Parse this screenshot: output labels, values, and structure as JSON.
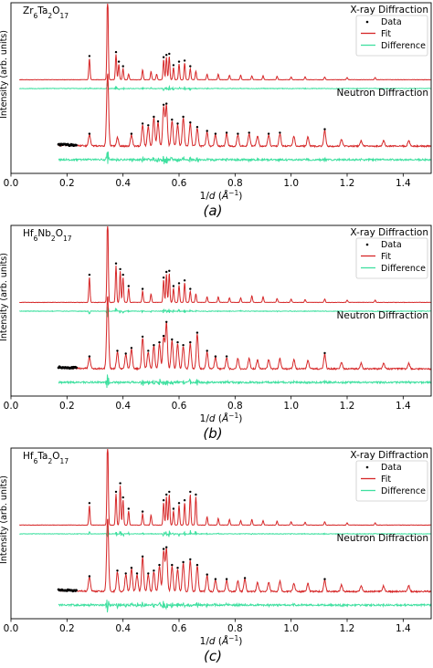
{
  "chart_data": [
    {
      "type": "line",
      "panel_label": "(a)",
      "compound": {
        "base": "Zr",
        "n1": "6",
        "metal2": "Ta",
        "n2": "2",
        "ox": "O",
        "n3": "17"
      },
      "xlabel_parts": {
        "pre": "1/",
        "d": "d",
        "open": " (",
        "A": "Å",
        "sup": "−1",
        "close": ")"
      },
      "ylabel": "Intensity (arb. units)",
      "xlim": [
        0.0,
        1.5
      ],
      "xticks": [
        "0.0",
        "0.2",
        "0.4",
        "0.6",
        "0.8",
        "1.0",
        "1.2",
        "1.4"
      ],
      "xtick_values": [
        0.0,
        0.2,
        0.4,
        0.6,
        0.8,
        1.0,
        1.2,
        1.4
      ],
      "legend": {
        "placement": "top-right",
        "entries": [
          "Data",
          "Fit",
          "Difference"
        ]
      },
      "series_colors": {
        "Data": "#000000",
        "Fit": "#d62728",
        "Difference": "#3fe0a0"
      },
      "xray": {
        "label": "X-ray Diffraction",
        "x_start": 0.03,
        "peaks": [
          [
            0.28,
            0.38
          ],
          [
            0.345,
            1.6
          ],
          [
            0.375,
            0.45
          ],
          [
            0.385,
            0.28
          ],
          [
            0.4,
            0.2
          ],
          [
            0.42,
            0.1
          ],
          [
            0.47,
            0.18
          ],
          [
            0.5,
            0.15
          ],
          [
            0.52,
            0.1
          ],
          [
            0.545,
            0.36
          ],
          [
            0.555,
            0.4
          ],
          [
            0.565,
            0.42
          ],
          [
            0.58,
            0.22
          ],
          [
            0.6,
            0.28
          ],
          [
            0.62,
            0.3
          ],
          [
            0.64,
            0.2
          ],
          [
            0.66,
            0.15
          ],
          [
            0.7,
            0.1
          ],
          [
            0.74,
            0.1
          ],
          [
            0.78,
            0.08
          ],
          [
            0.82,
            0.08
          ],
          [
            0.86,
            0.07
          ],
          [
            0.9,
            0.07
          ],
          [
            0.95,
            0.06
          ],
          [
            1.0,
            0.05
          ],
          [
            1.05,
            0.05
          ],
          [
            1.12,
            0.05
          ],
          [
            1.2,
            0.04
          ],
          [
            1.3,
            0.04
          ]
        ]
      },
      "neutron": {
        "label": "Neutron Diffraction",
        "x_start": 0.17,
        "peaks": [
          [
            0.28,
            0.2
          ],
          [
            0.345,
            1.3
          ],
          [
            0.38,
            0.15
          ],
          [
            0.43,
            0.2
          ],
          [
            0.47,
            0.38
          ],
          [
            0.49,
            0.35
          ],
          [
            0.51,
            0.5
          ],
          [
            0.525,
            0.42
          ],
          [
            0.545,
            0.7
          ],
          [
            0.555,
            0.72
          ],
          [
            0.575,
            0.45
          ],
          [
            0.595,
            0.38
          ],
          [
            0.615,
            0.5
          ],
          [
            0.64,
            0.4
          ],
          [
            0.665,
            0.32
          ],
          [
            0.7,
            0.25
          ],
          [
            0.73,
            0.2
          ],
          [
            0.77,
            0.22
          ],
          [
            0.81,
            0.2
          ],
          [
            0.85,
            0.22
          ],
          [
            0.88,
            0.18
          ],
          [
            0.92,
            0.2
          ],
          [
            0.96,
            0.22
          ],
          [
            1.01,
            0.18
          ],
          [
            1.06,
            0.16
          ],
          [
            1.12,
            0.28
          ],
          [
            1.18,
            0.12
          ],
          [
            1.25,
            0.1
          ],
          [
            1.33,
            0.1
          ],
          [
            1.42,
            0.1
          ]
        ]
      }
    },
    {
      "type": "line",
      "panel_label": "(b)",
      "compound": {
        "base": "Hf",
        "n1": "6",
        "metal2": "Nb",
        "n2": "2",
        "ox": "O",
        "n3": "17"
      },
      "xlabel_parts": {
        "pre": "1/",
        "d": "d",
        "open": " (",
        "A": "Å",
        "sup": "−1",
        "close": ")"
      },
      "ylabel": "Intensity (arb. units)",
      "xlim": [
        0.0,
        1.5
      ],
      "xticks": [
        "0.0",
        "0.2",
        "0.4",
        "0.6",
        "0.8",
        "1.0",
        "1.2",
        "1.4"
      ],
      "xtick_values": [
        0.0,
        0.2,
        0.4,
        0.6,
        0.8,
        1.0,
        1.2,
        1.4
      ],
      "legend": {
        "placement": "top-right",
        "entries": [
          "Data",
          "Fit",
          "Difference"
        ]
      },
      "series_colors": {
        "Data": "#000000",
        "Fit": "#d62728",
        "Difference": "#3fe0a0"
      },
      "xray": {
        "label": "X-ray Diffraction",
        "x_start": 0.03,
        "peaks": [
          [
            0.28,
            0.45
          ],
          [
            0.345,
            1.6
          ],
          [
            0.375,
            0.65
          ],
          [
            0.39,
            0.55
          ],
          [
            0.4,
            0.45
          ],
          [
            0.42,
            0.25
          ],
          [
            0.47,
            0.2
          ],
          [
            0.5,
            0.15
          ],
          [
            0.545,
            0.4
          ],
          [
            0.555,
            0.5
          ],
          [
            0.565,
            0.52
          ],
          [
            0.58,
            0.25
          ],
          [
            0.6,
            0.3
          ],
          [
            0.62,
            0.35
          ],
          [
            0.64,
            0.2
          ],
          [
            0.66,
            0.15
          ],
          [
            0.7,
            0.1
          ],
          [
            0.74,
            0.1
          ],
          [
            0.78,
            0.08
          ],
          [
            0.82,
            0.08
          ],
          [
            0.86,
            0.12
          ],
          [
            0.9,
            0.1
          ],
          [
            0.95,
            0.07
          ],
          [
            1.0,
            0.06
          ],
          [
            1.05,
            0.05
          ],
          [
            1.12,
            0.06
          ],
          [
            1.2,
            0.04
          ],
          [
            1.3,
            0.04
          ]
        ]
      },
      "neutron": {
        "label": "Neutron Diffraction",
        "x_start": 0.17,
        "peaks": [
          [
            0.28,
            0.2
          ],
          [
            0.345,
            1.3
          ],
          [
            0.38,
            0.3
          ],
          [
            0.41,
            0.25
          ],
          [
            0.43,
            0.35
          ],
          [
            0.47,
            0.55
          ],
          [
            0.49,
            0.3
          ],
          [
            0.51,
            0.4
          ],
          [
            0.53,
            0.45
          ],
          [
            0.545,
            0.55
          ],
          [
            0.555,
            0.8
          ],
          [
            0.575,
            0.5
          ],
          [
            0.595,
            0.45
          ],
          [
            0.615,
            0.4
          ],
          [
            0.64,
            0.45
          ],
          [
            0.665,
            0.62
          ],
          [
            0.7,
            0.3
          ],
          [
            0.73,
            0.2
          ],
          [
            0.77,
            0.2
          ],
          [
            0.81,
            0.18
          ],
          [
            0.85,
            0.18
          ],
          [
            0.88,
            0.16
          ],
          [
            0.92,
            0.16
          ],
          [
            0.96,
            0.18
          ],
          [
            1.01,
            0.16
          ],
          [
            1.06,
            0.14
          ],
          [
            1.12,
            0.26
          ],
          [
            1.18,
            0.12
          ],
          [
            1.25,
            0.1
          ],
          [
            1.33,
            0.1
          ],
          [
            1.42,
            0.1
          ]
        ]
      }
    },
    {
      "type": "line",
      "panel_label": "(c)",
      "compound": {
        "base": "Hf",
        "n1": "6",
        "metal2": "Ta",
        "n2": "2",
        "ox": "O",
        "n3": "17"
      },
      "xlabel_parts": {
        "pre": "1/",
        "d": "d",
        "open": " (",
        "A": "Å",
        "sup": "−1",
        "close": ")"
      },
      "ylabel": "Intensity (arb. units)",
      "xlim": [
        0.0,
        1.5
      ],
      "xticks": [
        "0.0",
        "0.2",
        "0.4",
        "0.6",
        "0.8",
        "1.0",
        "1.2",
        "1.4"
      ],
      "xtick_values": [
        0.0,
        0.2,
        0.4,
        0.6,
        0.8,
        1.0,
        1.2,
        1.4
      ],
      "legend": {
        "placement": "top-right",
        "entries": [
          "Data",
          "Fit",
          "Difference"
        ]
      },
      "series_colors": {
        "Data": "#000000",
        "Fit": "#d62728",
        "Difference": "#3fe0a0"
      },
      "xray": {
        "label": "X-ray Diffraction",
        "x_start": 0.03,
        "peaks": [
          [
            0.28,
            0.35
          ],
          [
            0.345,
            1.6
          ],
          [
            0.375,
            0.55
          ],
          [
            0.39,
            0.7
          ],
          [
            0.4,
            0.45
          ],
          [
            0.42,
            0.25
          ],
          [
            0.47,
            0.2
          ],
          [
            0.5,
            0.18
          ],
          [
            0.545,
            0.4
          ],
          [
            0.555,
            0.5
          ],
          [
            0.565,
            0.55
          ],
          [
            0.58,
            0.25
          ],
          [
            0.6,
            0.35
          ],
          [
            0.62,
            0.4
          ],
          [
            0.64,
            0.55
          ],
          [
            0.66,
            0.5
          ],
          [
            0.7,
            0.15
          ],
          [
            0.74,
            0.12
          ],
          [
            0.78,
            0.1
          ],
          [
            0.82,
            0.08
          ],
          [
            0.86,
            0.1
          ],
          [
            0.9,
            0.08
          ],
          [
            0.95,
            0.07
          ],
          [
            1.0,
            0.06
          ],
          [
            1.05,
            0.05
          ],
          [
            1.12,
            0.06
          ],
          [
            1.2,
            0.04
          ],
          [
            1.3,
            0.04
          ]
        ]
      },
      "neutron": {
        "label": "Neutron Diffraction",
        "x_start": 0.17,
        "peaks": [
          [
            0.28,
            0.25
          ],
          [
            0.345,
            1.3
          ],
          [
            0.38,
            0.35
          ],
          [
            0.41,
            0.3
          ],
          [
            0.43,
            0.4
          ],
          [
            0.45,
            0.3
          ],
          [
            0.47,
            0.6
          ],
          [
            0.49,
            0.3
          ],
          [
            0.51,
            0.35
          ],
          [
            0.53,
            0.45
          ],
          [
            0.545,
            0.72
          ],
          [
            0.555,
            0.75
          ],
          [
            0.575,
            0.45
          ],
          [
            0.595,
            0.4
          ],
          [
            0.615,
            0.5
          ],
          [
            0.64,
            0.55
          ],
          [
            0.665,
            0.45
          ],
          [
            0.7,
            0.28
          ],
          [
            0.73,
            0.2
          ],
          [
            0.77,
            0.2
          ],
          [
            0.81,
            0.18
          ],
          [
            0.835,
            0.22
          ],
          [
            0.88,
            0.16
          ],
          [
            0.92,
            0.16
          ],
          [
            0.96,
            0.18
          ],
          [
            1.01,
            0.14
          ],
          [
            1.06,
            0.14
          ],
          [
            1.12,
            0.2
          ],
          [
            1.18,
            0.12
          ],
          [
            1.25,
            0.1
          ],
          [
            1.33,
            0.1
          ],
          [
            1.42,
            0.1
          ]
        ]
      }
    }
  ]
}
